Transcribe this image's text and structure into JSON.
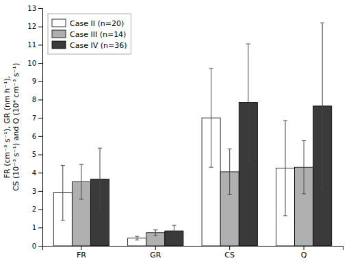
{
  "chart_data": {
    "type": "bar",
    "categories": [
      "FR",
      "GR",
      "CS",
      "Q"
    ],
    "series": [
      {
        "name": "Case II (n=20)",
        "color": "#ffffff",
        "values": [
          2.9,
          0.42,
          7.0,
          4.25
        ],
        "errors": [
          1.5,
          0.1,
          2.7,
          2.6
        ]
      },
      {
        "name": "Case III (n=14)",
        "color": "#b0b0b0",
        "values": [
          3.5,
          0.72,
          4.05,
          4.3
        ],
        "errors": [
          0.95,
          0.15,
          1.25,
          1.45
        ]
      },
      {
        "name": "Case IV (n=36)",
        "color": "#3a3a3a",
        "values": [
          3.65,
          0.82,
          7.85,
          7.65
        ],
        "errors": [
          1.7,
          0.3,
          3.2,
          4.55
        ]
      }
    ],
    "ylabel": "FR (cm⁻³ s⁻¹), GR (nm h⁻¹),\nCS (10⁻³ s⁻¹) and Q (10⁴ cm⁻³ s⁻¹)",
    "ylim": [
      0,
      13
    ],
    "yticks": [
      0,
      1,
      2,
      3,
      4,
      5,
      6,
      7,
      8,
      9,
      10,
      11,
      12,
      13
    ],
    "grid": false,
    "legend": "upper left"
  }
}
